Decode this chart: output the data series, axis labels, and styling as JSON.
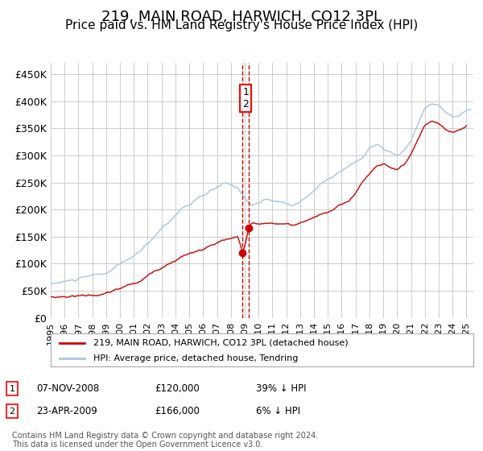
{
  "title": "219, MAIN ROAD, HARWICH, CO12 3PL",
  "subtitle": "Price paid vs. HM Land Registry's House Price Index (HPI)",
  "title_fontsize": 13,
  "subtitle_fontsize": 11,
  "background_color": "#ffffff",
  "plot_bg_color": "#ffffff",
  "grid_color": "#cccccc",
  "hpi_color": "#aac4e0",
  "red_line_color": "#cc0000",
  "marker_color": "#cc0000",
  "dashed_line_color": "#cc0000",
  "ylim": [
    0,
    470000
  ],
  "yticks": [
    0,
    50000,
    100000,
    150000,
    200000,
    250000,
    300000,
    350000,
    400000,
    450000
  ],
  "ytick_labels": [
    "£0",
    "£50K",
    "£100K",
    "£150K",
    "£200K",
    "£250K",
    "£300K",
    "£350K",
    "£400K",
    "£450K"
  ],
  "xtick_years": [
    1995,
    1996,
    1997,
    1998,
    1999,
    2000,
    2001,
    2002,
    2003,
    2004,
    2005,
    2006,
    2007,
    2008,
    2009,
    2010,
    2011,
    2012,
    2013,
    2014,
    2015,
    2016,
    2017,
    2018,
    2019,
    2020,
    2021,
    2022,
    2023,
    2024,
    2025
  ],
  "transaction1_date": 2008.854,
  "transaction1_price": 120000,
  "transaction2_date": 2009.31,
  "transaction2_price": 166000,
  "legend_label_red": "219, MAIN ROAD, HARWICH, CO12 3PL (detached house)",
  "legend_label_blue": "HPI: Average price, detached house, Tendring",
  "table_rows": [
    {
      "num": "1",
      "date": "07-NOV-2008",
      "price": "£120,000",
      "hpi": "39% ↓ HPI"
    },
    {
      "num": "2",
      "date": "23-APR-2009",
      "price": "£166,000",
      "hpi": "6% ↓ HPI"
    }
  ],
  "footer_text": "Contains HM Land Registry data © Crown copyright and database right 2024.\nThis data is licensed under the Open Government Licence v3.0.",
  "hpi_breakpoints": [
    [
      1995.0,
      62000
    ],
    [
      1997.0,
      70000
    ],
    [
      1999.0,
      78000
    ],
    [
      2001.5,
      115000
    ],
    [
      2003.0,
      158000
    ],
    [
      2004.5,
      198000
    ],
    [
      2006.0,
      218000
    ],
    [
      2007.5,
      238000
    ],
    [
      2008.5,
      228000
    ],
    [
      2009.5,
      198000
    ],
    [
      2010.5,
      208000
    ],
    [
      2011.5,
      202000
    ],
    [
      2012.5,
      198000
    ],
    [
      2013.5,
      213000
    ],
    [
      2014.5,
      238000
    ],
    [
      2015.5,
      258000
    ],
    [
      2016.5,
      273000
    ],
    [
      2017.5,
      288000
    ],
    [
      2018.0,
      308000
    ],
    [
      2018.5,
      313000
    ],
    [
      2019.0,
      303000
    ],
    [
      2019.5,
      298000
    ],
    [
      2020.0,
      288000
    ],
    [
      2020.5,
      298000
    ],
    [
      2021.0,
      313000
    ],
    [
      2021.5,
      343000
    ],
    [
      2022.0,
      373000
    ],
    [
      2022.5,
      383000
    ],
    [
      2023.0,
      378000
    ],
    [
      2023.5,
      363000
    ],
    [
      2024.0,
      353000
    ],
    [
      2024.5,
      358000
    ],
    [
      2025.3,
      368000
    ]
  ],
  "red_breakpoints": [
    [
      1995.0,
      38000
    ],
    [
      1997.0,
      42000
    ],
    [
      1999.0,
      46000
    ],
    [
      2001.5,
      68000
    ],
    [
      2003.0,
      95000
    ],
    [
      2004.5,
      118000
    ],
    [
      2006.0,
      130000
    ],
    [
      2007.5,
      145000
    ],
    [
      2008.5,
      148000
    ],
    [
      2008.854,
      120000
    ],
    [
      2009.0,
      130000
    ],
    [
      2009.31,
      166000
    ],
    [
      2009.5,
      172000
    ],
    [
      2010.0,
      168000
    ],
    [
      2010.5,
      170000
    ],
    [
      2011.5,
      172000
    ],
    [
      2012.5,
      168000
    ],
    [
      2013.0,
      172000
    ],
    [
      2013.5,
      178000
    ],
    [
      2014.5,
      190000
    ],
    [
      2015.5,
      200000
    ],
    [
      2016.5,
      215000
    ],
    [
      2017.0,
      230000
    ],
    [
      2017.5,
      250000
    ],
    [
      2018.0,
      265000
    ],
    [
      2018.5,
      280000
    ],
    [
      2019.0,
      285000
    ],
    [
      2019.5,
      278000
    ],
    [
      2020.0,
      270000
    ],
    [
      2020.5,
      278000
    ],
    [
      2021.0,
      295000
    ],
    [
      2021.5,
      320000
    ],
    [
      2022.0,
      345000
    ],
    [
      2022.5,
      355000
    ],
    [
      2023.0,
      350000
    ],
    [
      2023.5,
      338000
    ],
    [
      2024.0,
      332000
    ],
    [
      2024.5,
      338000
    ],
    [
      2025.0,
      345000
    ]
  ]
}
